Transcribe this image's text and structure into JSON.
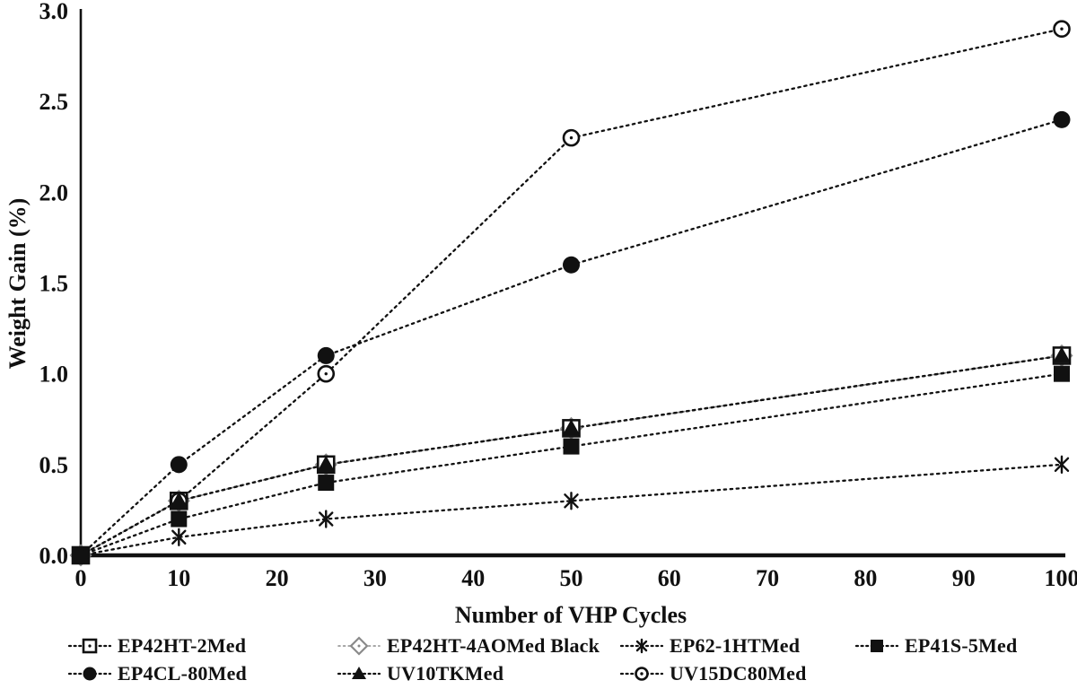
{
  "figure": {
    "background_color": "#ffffff",
    "line_color": "#111111",
    "diamond_line_color": "#8a8a8a"
  },
  "chart_data": {
    "type": "line",
    "title": "",
    "xlabel": "Number of VHP Cycles",
    "ylabel": "Weight Gain (%)",
    "xlim": [
      0,
      100
    ],
    "ylim": [
      0,
      3.0
    ],
    "xticks": [
      "0",
      "10",
      "20",
      "30",
      "40",
      "50",
      "60",
      "70",
      "80",
      "90",
      "100"
    ],
    "yticks": [
      "0.0",
      "0.5",
      "1.0",
      "1.5",
      "2.0",
      "2.5",
      "3.0"
    ],
    "grid": "off",
    "legend_position": "bottom",
    "line_style": "dotted",
    "x": [
      0,
      10,
      25,
      50,
      100
    ],
    "series": [
      {
        "name": "EP42HT-2Med",
        "marker": "open-square-icon",
        "color": "#111111",
        "values": [
          0,
          0.3,
          0.5,
          0.7,
          1.1
        ]
      },
      {
        "name": "EP42HT-4AOMed Black",
        "marker": "open-diamond-icon",
        "color": "#8a8a8a",
        "values": [
          0,
          0.3,
          0.5,
          0.7,
          1.1
        ]
      },
      {
        "name": "EP62-1HTMed",
        "marker": "asterisk-icon",
        "color": "#111111",
        "values": [
          0,
          0.1,
          0.2,
          0.3,
          0.5
        ]
      },
      {
        "name": "EP41S-5Med",
        "marker": "filled-square-icon",
        "color": "#111111",
        "values": [
          0,
          0.2,
          0.4,
          0.6,
          1.0
        ]
      },
      {
        "name": "EP4CL-80Med",
        "marker": "filled-circle-icon",
        "color": "#111111",
        "values": [
          0,
          0.5,
          1.1,
          1.6,
          2.4
        ]
      },
      {
        "name": "UV10TKMed",
        "marker": "filled-triangle-icon",
        "color": "#111111",
        "values": [
          0,
          0.3,
          0.5,
          0.7,
          1.1
        ]
      },
      {
        "name": "UV15DC80Med",
        "marker": "circle-dot-icon",
        "color": "#111111",
        "values": [
          0,
          0.3,
          1.0,
          2.3,
          2.9
        ]
      }
    ]
  }
}
